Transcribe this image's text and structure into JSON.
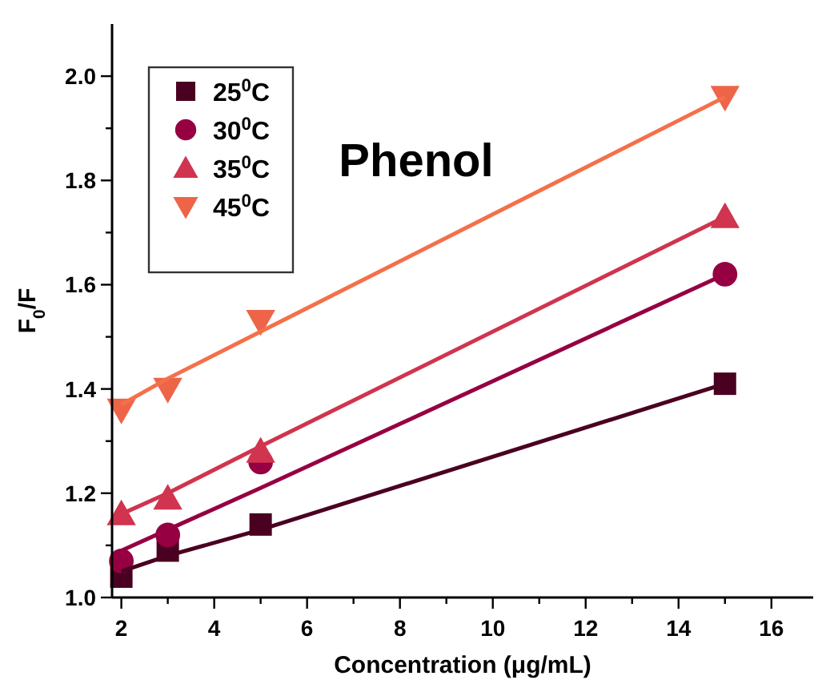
{
  "chart_data": {
    "type": "scatter",
    "title": "Phenol",
    "xlabel": "Concentration (μg/mL)",
    "ylabel": "F$_{0}$/F",
    "x": [
      2,
      3,
      5,
      15
    ],
    "series": [
      {
        "name": "25$^{0}$C",
        "color": "#4a0020",
        "marker": "square",
        "values": [
          1.04,
          1.09,
          1.14,
          1.41
        ]
      },
      {
        "name": "30$^{0}$C",
        "color": "#960042",
        "marker": "circle",
        "values": [
          1.07,
          1.12,
          1.26,
          1.62
        ]
      },
      {
        "name": "35$^{0}$C",
        "color": "#d0344f",
        "marker": "triangle",
        "values": [
          1.16,
          1.19,
          1.28,
          1.73
        ]
      },
      {
        "name": "45$^{0}$C",
        "color": "#ee6449",
        "marker": "triangle-down",
        "values": [
          1.36,
          1.4,
          1.53,
          1.96
        ]
      },
      {
        "type": "line",
        "color": "#4a0020",
        "values": [
          1.05,
          1.08,
          1.13,
          1.41
        ]
      },
      {
        "type": "line",
        "color": "#960042",
        "values": [
          1.09,
          1.13,
          1.21,
          1.62
        ]
      },
      {
        "type": "line",
        "color": "#d0344f",
        "values": [
          1.16,
          1.2,
          1.29,
          1.73
        ]
      },
      {
        "type": "line",
        "color": "#f4704a",
        "values": [
          1.37,
          1.42,
          1.51,
          1.96
        ]
      }
    ],
    "xlim": [
      1.8,
      16.9
    ],
    "ylim": [
      1.0,
      2.1
    ],
    "xticks": [
      2,
      {
        "value": 3,
        "label": null
      },
      4,
      {
        "value": 5,
        "label": null
      },
      6,
      {
        "value": 7,
        "label": null
      },
      8,
      {
        "value": 9,
        "label": null
      },
      10,
      {
        "value": 11,
        "label": null
      },
      12,
      {
        "value": 13,
        "label": null
      },
      14,
      {
        "value": 15,
        "label": null
      },
      16
    ],
    "yticks": [
      {
        "value": 1.0,
        "label": "1.0"
      },
      {
        "value": 1.1,
        "label": null
      },
      {
        "value": 1.2,
        "label": "1.2"
      },
      {
        "value": 1.3,
        "label": null
      },
      {
        "value": 1.4,
        "label": "1.4"
      },
      {
        "value": 1.5,
        "label": null
      },
      {
        "value": 1.6,
        "label": "1.6"
      },
      {
        "value": 1.7,
        "label": null
      },
      {
        "value": 1.8,
        "label": "1.8"
      },
      {
        "value": 1.9,
        "label": null
      },
      {
        "value": 2.0,
        "label": "2.0"
      }
    ],
    "legend": "top left",
    "grid": false
  }
}
